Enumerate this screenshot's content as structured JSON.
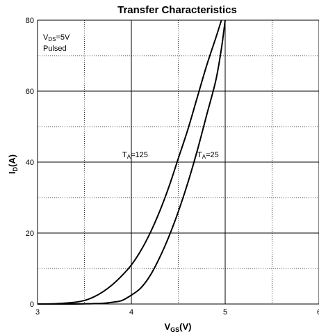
{
  "chart_data": {
    "type": "line",
    "title": "Transfer Characteristics",
    "xlabel": {
      "main": "V",
      "sub": "GS",
      "unit": "(V)"
    },
    "ylabel": {
      "main": "I",
      "sub": "D",
      "unit": "(A)"
    },
    "xlim": [
      3,
      6
    ],
    "ylim": [
      0,
      80
    ],
    "x_ticks": [
      3,
      4,
      5,
      6
    ],
    "x_tick_labels": [
      "3",
      "4",
      "5",
      "6"
    ],
    "y_ticks": [
      0,
      20,
      40,
      60,
      80
    ],
    "y_tick_labels": [
      "0",
      "20",
      "40",
      "60",
      "80"
    ],
    "grid": true,
    "grid_x_minor": [
      3.5,
      4.5,
      5.5
    ],
    "grid_y_minor": [
      10,
      30,
      50,
      70
    ],
    "conditions": {
      "line1": {
        "main": "V",
        "sub": "DS",
        "rest": "=5V"
      },
      "line2": "Pulsed"
    },
    "series": [
      {
        "label": {
          "main": "T",
          "sub": "A",
          "rest": "=125"
        },
        "x": [
          3.0,
          3.2,
          3.4,
          3.5,
          3.6,
          3.7,
          3.8,
          3.9,
          4.0,
          4.1,
          4.2,
          4.3,
          4.4,
          4.5,
          4.6,
          4.7,
          4.8,
          4.9,
          4.96
        ],
        "y": [
          0.0,
          0.1,
          0.5,
          1.0,
          2.0,
          3.5,
          5.5,
          8.0,
          11.0,
          15.0,
          20.0,
          26.0,
          33.0,
          41.0,
          49.0,
          58.0,
          67.0,
          75.0,
          80.0
        ]
      },
      {
        "label": {
          "main": "T",
          "sub": "A",
          "rest": "=25"
        },
        "x": [
          3.0,
          3.4,
          3.6,
          3.7,
          3.8,
          3.9,
          4.0,
          4.1,
          4.2,
          4.3,
          4.4,
          4.5,
          4.6,
          4.7,
          4.8,
          4.9,
          4.96,
          5.0
        ],
        "y": [
          0.0,
          0.0,
          0.1,
          0.2,
          0.5,
          1.0,
          2.5,
          4.5,
          8.0,
          13.0,
          19.0,
          26.0,
          34.0,
          43.0,
          53.0,
          63.0,
          72.0,
          80.0
        ]
      }
    ]
  }
}
